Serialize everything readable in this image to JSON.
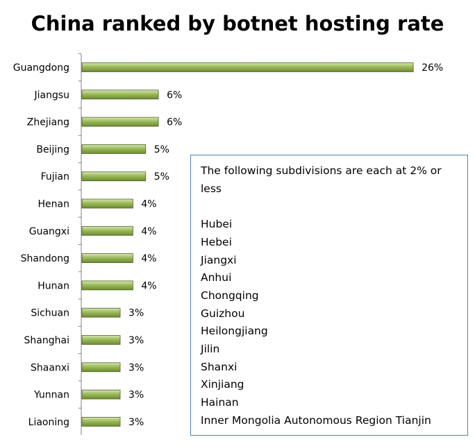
{
  "chart_data": {
    "type": "bar",
    "orientation": "horizontal",
    "title": "China ranked by botnet hosting rate",
    "categories": [
      "Guangdong",
      "Jiangsu",
      "Zhejiang",
      "Beijing",
      "Fujian",
      "Henan",
      "Guangxi",
      "Shandong",
      "Hunan",
      "Sichuan",
      "Shanghai",
      "Shaanxi",
      "Yunnan",
      "Liaoning"
    ],
    "values": [
      26,
      6,
      6,
      5,
      5,
      4,
      4,
      4,
      4,
      3,
      3,
      3,
      3,
      3
    ],
    "value_labels": [
      "26%",
      "6%",
      "6%",
      "5%",
      "5%",
      "4%",
      "4%",
      "4%",
      "4%",
      "3%",
      "3%",
      "3%",
      "3%",
      "3%"
    ],
    "xlabel": "",
    "ylabel": "",
    "grid": false,
    "legend": "none",
    "bar_color": "#9bbb59",
    "bar_edge_color": "#4f6228",
    "annotation": {
      "heading": "The following subdivisions are each at 2% or less",
      "items": [
        "Hubei",
        "Hebei",
        "Jiangxi",
        "Anhui",
        "Chongqing",
        "Guizhou",
        "Heilongjiang",
        "Jilin",
        "Shanxi",
        "Xinjiang",
        "Hainan",
        "Inner Mongolia Autonomous Region Tianjin"
      ]
    }
  }
}
